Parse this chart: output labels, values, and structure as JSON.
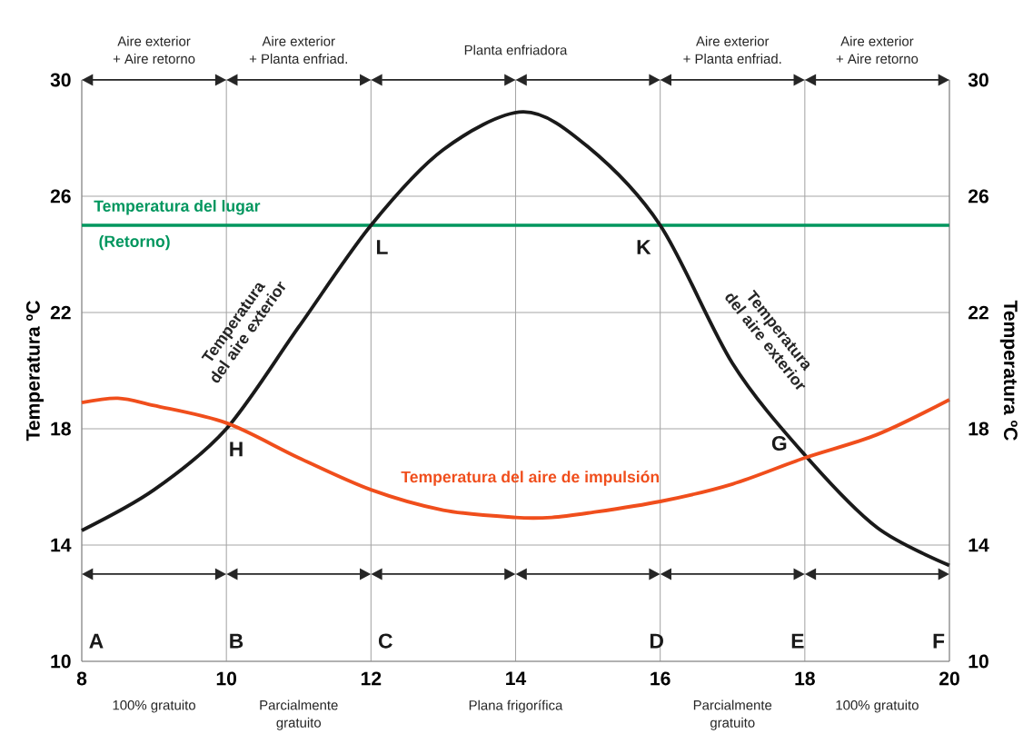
{
  "chart_data": {
    "type": "line",
    "ylabel": "Temperatura ºC",
    "y2label": "Temperatura ºC",
    "xlim": [
      8,
      20
    ],
    "xticks": [
      8,
      10,
      12,
      14,
      16,
      18,
      20
    ],
    "ylim": [
      10,
      30
    ],
    "yticks": [
      10,
      14,
      18,
      22,
      26,
      30
    ],
    "y2lim": [
      10,
      30
    ],
    "y2ticks": [
      10,
      14,
      18,
      22,
      26,
      30
    ],
    "grid": true,
    "x": [
      8,
      9,
      10,
      11,
      12,
      13,
      14.1,
      15,
      16,
      17,
      18,
      19,
      20
    ],
    "series": [
      {
        "color": "#1a1a1a",
        "values": [
          14.5,
          15.9,
          18,
          21.5,
          25,
          27.6,
          28.9,
          27.7,
          25,
          20.25,
          17.1,
          14.6,
          13.3
        ]
      },
      {
        "color": "#f04e1c",
        "x": [
          8,
          8.5,
          9,
          10,
          11,
          12,
          13,
          14,
          14.5,
          15,
          16,
          17,
          18,
          19,
          20
        ],
        "values": [
          18.9,
          19.05,
          18.8,
          18.2,
          17.0,
          15.9,
          15.2,
          14.95,
          14.95,
          15.1,
          15.5,
          16.1,
          17.0,
          17.8,
          19.0
        ]
      }
    ],
    "ref_lines": [
      {
        "axis": "y",
        "value": 25,
        "label": "Temperatura del lugar",
        "color": "#00965e"
      }
    ],
    "annotations": [
      "(Retorno)",
      "Temperatura del aire exterior",
      "Temperatura del aire exterior",
      "Temperatura del aire de impulsión",
      "A",
      "B",
      "C",
      "D",
      "E",
      "F",
      "H",
      "L",
      "K",
      "G",
      "Aire exterior",
      "+ Aire retorno",
      "Aire exterior",
      "+ Planta enfriad.",
      "Planta enfriadora",
      "Aire exterior",
      "+ Planta enfriad.",
      "Aire exterior",
      "+ Aire retorno",
      "100% gratuito",
      "Parcialmente",
      "gratuito",
      "Plana frigorífica",
      "Parcialmente",
      "gratuito",
      "100% gratuito"
    ]
  }
}
